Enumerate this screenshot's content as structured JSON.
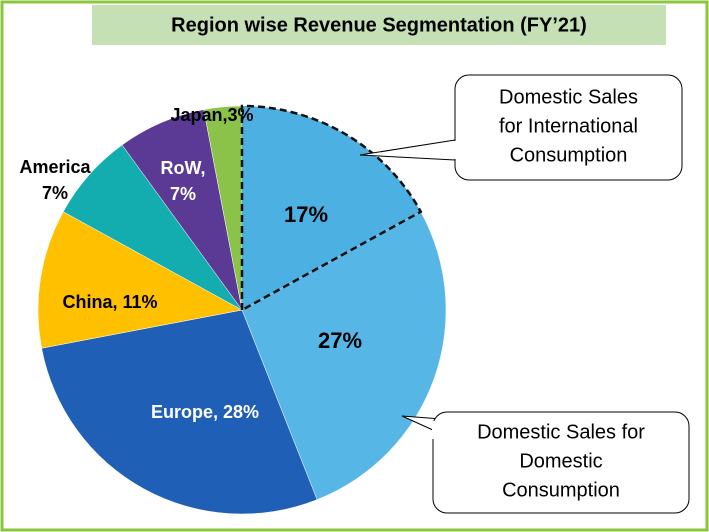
{
  "chart_data": {
    "type": "pie",
    "title": "Region wise Revenue Segmentation (FY’21)",
    "categories": [
      "Domestic Sales\nfor International\nConsumption",
      "Domestic Sales for\nDomestic\nConsumption",
      null,
      null,
      null,
      null,
      null
    ],
    "values": [
      17,
      27,
      28,
      11,
      7,
      7,
      3
    ],
    "value_labels": [
      "17%",
      "27%",
      "Europe, 28%",
      "China, 11%",
      "America\n7%",
      "RoW,\n7%",
      "Japan,3%"
    ],
    "colors": [
      "#4db0e2",
      "#56b6e6",
      "#1f5fb5",
      "#ffc000",
      "#13adb0",
      "#5a3a95",
      "#8bc34a"
    ]
  }
}
